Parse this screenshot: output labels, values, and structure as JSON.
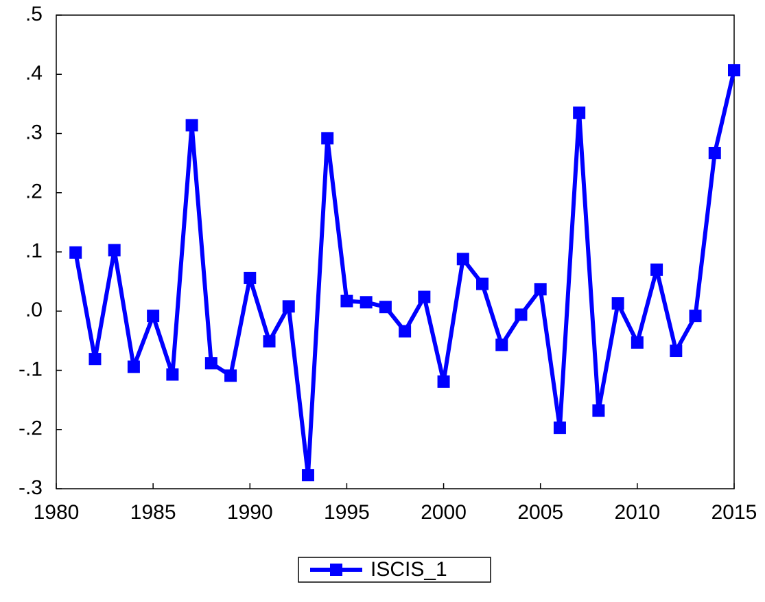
{
  "chart_data": {
    "type": "line",
    "x": [
      1981,
      1982,
      1983,
      1984,
      1985,
      1986,
      1987,
      1988,
      1989,
      1990,
      1991,
      1992,
      1993,
      1994,
      1995,
      1996,
      1997,
      1998,
      1999,
      2000,
      2001,
      2002,
      2003,
      2004,
      2005,
      2006,
      2007,
      2008,
      2009,
      2010,
      2011,
      2012,
      2013,
      2014,
      2015
    ],
    "series": [
      {
        "name": "ISCIS_1",
        "color": "#0000ff",
        "values": [
          0.099,
          -0.081,
          0.103,
          -0.094,
          -0.008,
          -0.107,
          0.314,
          -0.088,
          -0.109,
          0.056,
          -0.051,
          0.008,
          -0.277,
          0.292,
          0.017,
          0.015,
          0.007,
          -0.034,
          0.024,
          -0.119,
          0.088,
          0.046,
          -0.057,
          -0.006,
          0.037,
          -0.197,
          0.335,
          -0.168,
          0.013,
          -0.053,
          0.07,
          -0.067,
          -0.008,
          0.267,
          0.407
        ]
      }
    ],
    "xlim": [
      1980,
      2015
    ],
    "xticks": [
      1980,
      1985,
      1990,
      1995,
      2000,
      2005,
      2010,
      2015
    ],
    "ylim": [
      -0.3,
      0.5
    ],
    "yticks": [
      {
        "value": -0.3,
        "label": "-.3"
      },
      {
        "value": -0.2,
        "label": "-.2"
      },
      {
        "value": -0.1,
        "label": "-.1"
      },
      {
        "value": 0,
        "label": ".0"
      },
      {
        "value": 0.1,
        "label": ".1"
      },
      {
        "value": 0.2,
        "label": ".2"
      },
      {
        "value": 0.3,
        "label": ".3"
      },
      {
        "value": 0.4,
        "label": ".4"
      },
      {
        "value": 0.5,
        "label": ".5"
      }
    ],
    "grid": false
  }
}
